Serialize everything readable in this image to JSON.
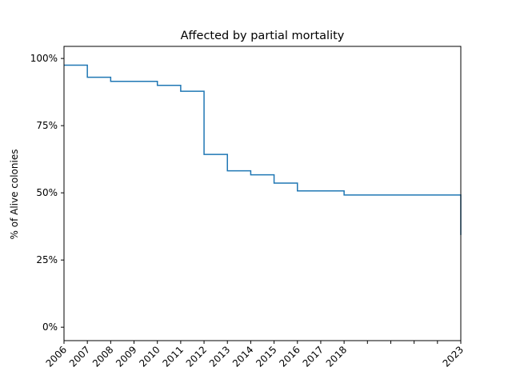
{
  "chart_data": {
    "type": "line",
    "title": "Affected by partial mortality",
    "xlabel": "",
    "ylabel": "% of Alive colonies",
    "x_ticks": [
      2006,
      2007,
      2008,
      2009,
      2010,
      2011,
      2012,
      2013,
      2014,
      2015,
      2016,
      2017,
      2018,
      2023
    ],
    "x_tick_marks_unlabeled": [
      2019,
      2020,
      2021,
      2022
    ],
    "y_ticks": [
      0,
      25,
      50,
      75,
      100
    ],
    "y_tick_labels": [
      "0%",
      "25%",
      "50%",
      "75%",
      "100%"
    ],
    "xlim": [
      2006,
      2023
    ],
    "ylim": [
      -5,
      104.5
    ],
    "step": "post",
    "grid": false,
    "legend": "none",
    "series": [
      {
        "color": "#1f77b4",
        "x": [
          2006,
          2007,
          2008,
          2010,
          2011,
          2012,
          2013,
          2014,
          2015,
          2016,
          2018,
          2023,
          2023
        ],
        "y": [
          97.5,
          93,
          91.5,
          90,
          87.8,
          64.3,
          58.2,
          56.7,
          53.6,
          50.7,
          49.2,
          48.3,
          34.3
        ]
      }
    ]
  }
}
